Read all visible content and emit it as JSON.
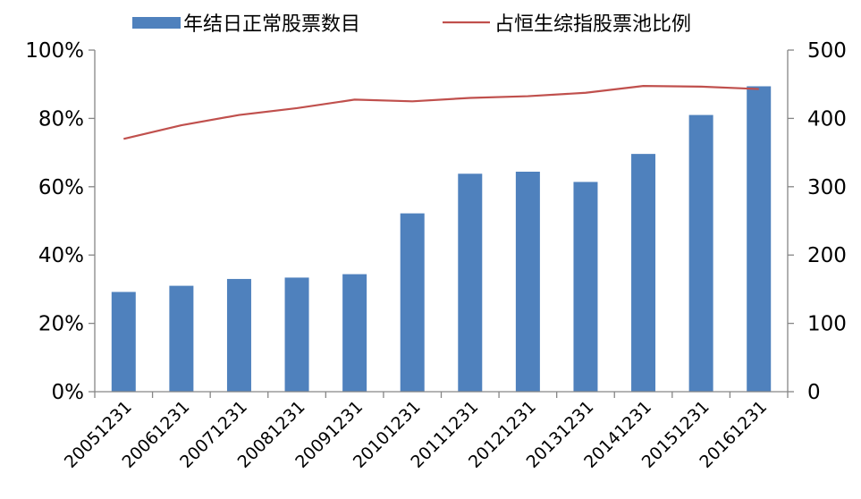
{
  "chart_data": {
    "type": "bar",
    "categories": [
      "20051231",
      "20061231",
      "20071231",
      "20081231",
      "20091231",
      "20101231",
      "20111231",
      "20121231",
      "20131231",
      "20141231",
      "20151231",
      "20161231"
    ],
    "series": [
      {
        "name": "年结日正常股票数目",
        "type": "bar",
        "axis": "right",
        "color": "#4F81BD",
        "values": [
          146,
          155,
          165,
          167,
          172,
          261,
          319,
          322,
          307,
          348,
          405,
          447
        ]
      },
      {
        "name": "占恒生综指股票池比例",
        "type": "line",
        "axis": "left",
        "color": "#C0504D",
        "values": [
          0.74,
          0.78,
          0.81,
          0.83,
          0.855,
          0.85,
          0.86,
          0.865,
          0.875,
          0.895,
          0.893,
          0.886
        ]
      }
    ],
    "y_left": {
      "ylim": [
        0,
        1
      ],
      "ticks": [
        0,
        0.2,
        0.4,
        0.6,
        0.8,
        1
      ],
      "tick_labels": [
        "0%",
        "20%",
        "40%",
        "60%",
        "80%",
        "100%"
      ]
    },
    "y_right": {
      "ylim": [
        0,
        500
      ],
      "ticks": [
        0,
        100,
        200,
        300,
        400,
        500
      ],
      "tick_labels": [
        "0",
        "100",
        "200",
        "300",
        "400",
        "500"
      ]
    },
    "legend_position": "top",
    "grid": false
  }
}
